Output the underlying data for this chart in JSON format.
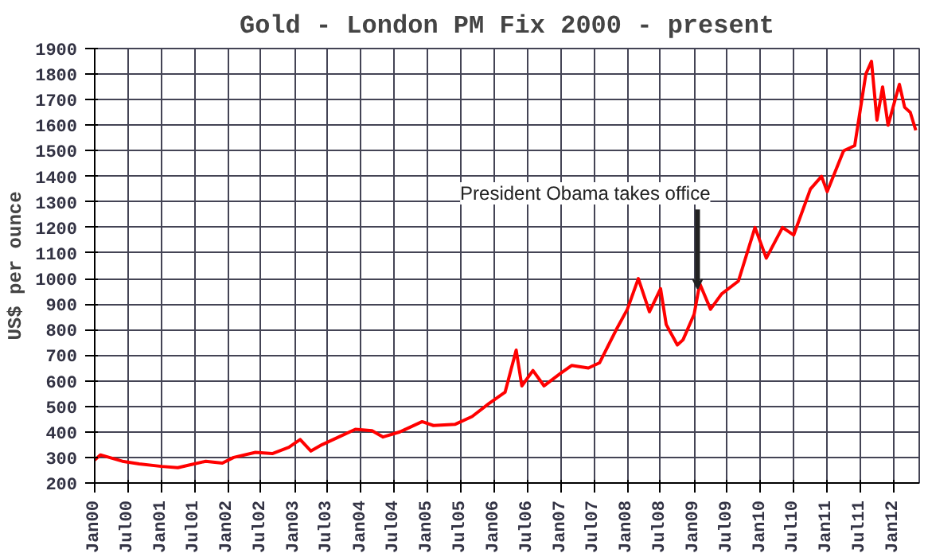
{
  "chart_data": {
    "type": "line",
    "title": "Gold - London PM Fix 2000 - present",
    "ylabel": "US$ per ounce",
    "x": [
      "2000-01",
      "2000-02",
      "2000-06",
      "2000-09",
      "2001-01",
      "2001-04",
      "2001-06",
      "2001-09",
      "2001-12",
      "2002-02",
      "2002-06",
      "2002-09",
      "2002-12",
      "2003-02",
      "2003-04",
      "2003-06",
      "2003-09",
      "2003-12",
      "2004-03",
      "2004-05",
      "2004-08",
      "2004-12",
      "2005-02",
      "2005-06",
      "2005-09",
      "2005-12",
      "2006-03",
      "2006-05",
      "2006-06",
      "2006-08",
      "2006-10",
      "2007-01",
      "2007-03",
      "2007-06",
      "2007-08",
      "2007-11",
      "2008-01",
      "2008-03",
      "2008-05",
      "2008-07",
      "2008-08",
      "2008-10",
      "2008-11",
      "2009-01",
      "2009-02",
      "2009-04",
      "2009-06",
      "2009-09",
      "2009-12",
      "2010-02",
      "2010-05",
      "2010-07",
      "2010-10",
      "2010-12",
      "2011-01",
      "2011-04",
      "2011-06",
      "2011-08",
      "2011-09",
      "2011-10",
      "2011-11",
      "2011-12",
      "2012-02",
      "2012-03",
      "2012-04",
      "2012-05"
    ],
    "series": [
      {
        "color": "#ff0000",
        "values": [
          290,
          310,
          285,
          275,
          265,
          260,
          270,
          285,
          278,
          300,
          320,
          315,
          340,
          370,
          325,
          350,
          380,
          410,
          405,
          380,
          400,
          440,
          425,
          430,
          460,
          510,
          555,
          720,
          580,
          640,
          580,
          630,
          660,
          650,
          670,
          800,
          880,
          1000,
          870,
          960,
          820,
          740,
          760,
          860,
          980,
          880,
          940,
          990,
          1200,
          1080,
          1200,
          1170,
          1350,
          1400,
          1340,
          1500,
          1520,
          1800,
          1850,
          1620,
          1750,
          1600,
          1760,
          1670,
          1650,
          1580
        ]
      }
    ],
    "xlim": [
      "2000-01-01",
      "2012-05-20"
    ],
    "ylim": [
      200,
      1900
    ],
    "xticks": [
      {
        "value": "2000-01-01",
        "label": "Jan00"
      },
      {
        "value": "2000-07-01",
        "label": "Jul00"
      },
      {
        "value": "2001-01-01",
        "label": "Jan01"
      },
      {
        "value": "2001-07-01",
        "label": "Jul01"
      },
      {
        "value": "2002-01-01",
        "label": "Jan02"
      },
      {
        "value": "2002-07-01",
        "label": "Jul02"
      },
      {
        "value": "2003-01-01",
        "label": "Jan03"
      },
      {
        "value": "2003-07-01",
        "label": "Jul03"
      },
      {
        "value": "2004-01-01",
        "label": "Jan04"
      },
      {
        "value": "2004-07-01",
        "label": "Jul04"
      },
      {
        "value": "2005-01-01",
        "label": "Jan05"
      },
      {
        "value": "2005-07-01",
        "label": "Jul05"
      },
      {
        "value": "2006-01-01",
        "label": "Jan06"
      },
      {
        "value": "2006-07-01",
        "label": "Jul06"
      },
      {
        "value": "2007-01-01",
        "label": "Jan07"
      },
      {
        "value": "2007-07-01",
        "label": "Jul07"
      },
      {
        "value": "2008-01-01",
        "label": "Jan08"
      },
      {
        "value": "2008-07-01",
        "label": "Jul08"
      },
      {
        "value": "2009-01-01",
        "label": "Jan09"
      },
      {
        "value": "2009-07-01",
        "label": "Jul09"
      },
      {
        "value": "2010-01-01",
        "label": "Jan10"
      },
      {
        "value": "2010-07-01",
        "label": "Jul10"
      },
      {
        "value": "2011-01-01",
        "label": "Jan11"
      },
      {
        "value": "2011-07-01",
        "label": "Jul11"
      },
      {
        "value": "2012-01-01",
        "label": "Jan12"
      }
    ],
    "yticks": [
      200,
      300,
      400,
      500,
      600,
      700,
      800,
      900,
      1000,
      1100,
      1200,
      1300,
      1400,
      1500,
      1600,
      1700,
      1800,
      1900
    ],
    "grid": true,
    "marker": "none",
    "line_style": "solid",
    "annotations": [
      {
        "text": "President Obama takes office",
        "x": "2009-01-20",
        "y": 960
      }
    ]
  }
}
